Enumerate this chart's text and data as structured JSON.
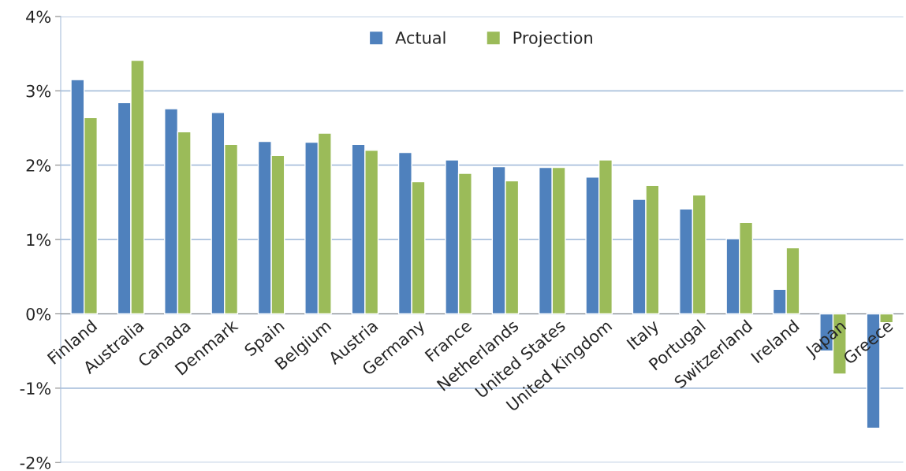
{
  "chart_data": {
    "type": "bar",
    "categories": [
      "Finland",
      "Australia",
      "Canada",
      "Denmark",
      "Spain",
      "Belgium",
      "Austria",
      "Germany",
      "France",
      "Netherlands",
      "United States",
      "United Kingdom",
      "Italy",
      "Portugal",
      "Switzerland",
      "Ireland",
      "Japan",
      "Greece"
    ],
    "series": [
      {
        "name": "Actual",
        "color": "#4f81bd",
        "values": [
          3.15,
          2.84,
          2.76,
          2.71,
          2.32,
          2.31,
          2.28,
          2.17,
          2.07,
          1.98,
          1.97,
          1.84,
          1.54,
          1.41,
          1.01,
          0.33,
          -0.5,
          -1.54
        ]
      },
      {
        "name": "Projection",
        "color": "#9bbb59",
        "values": [
          2.64,
          3.41,
          2.45,
          2.28,
          2.13,
          2.43,
          2.2,
          1.78,
          1.89,
          1.79,
          1.97,
          2.07,
          1.73,
          1.6,
          1.23,
          0.89,
          -0.81,
          -0.12
        ]
      }
    ],
    "ylim": [
      -2,
      4
    ],
    "yticks": [
      {
        "value": -2,
        "label": "-2%"
      },
      {
        "value": -1,
        "label": "-1%"
      },
      {
        "value": 0,
        "label": "0%"
      },
      {
        "value": 1,
        "label": "1%"
      },
      {
        "value": 2,
        "label": "2%"
      },
      {
        "value": 3,
        "label": "3%"
      },
      {
        "value": 4,
        "label": "4%"
      }
    ],
    "grid": "y",
    "legend": "top"
  }
}
